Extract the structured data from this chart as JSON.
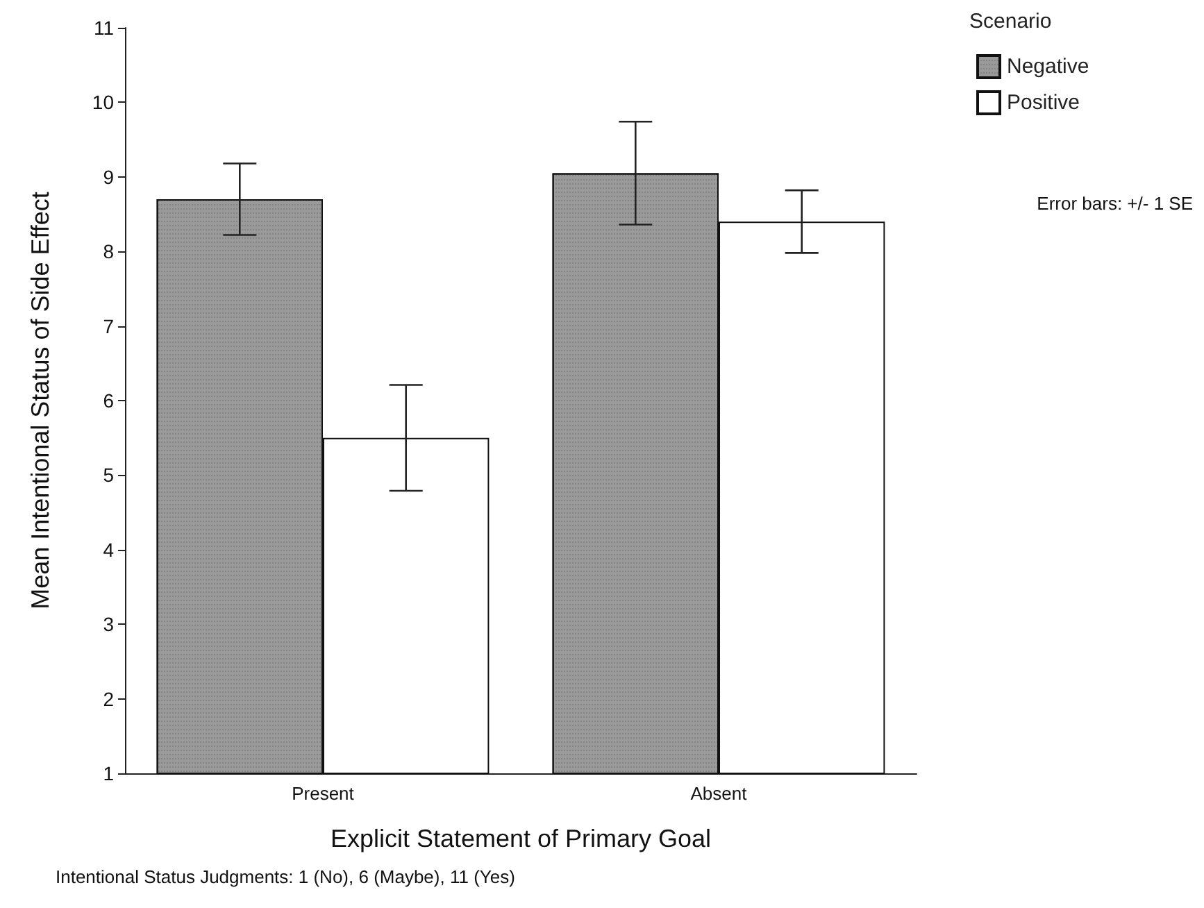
{
  "chart_data": {
    "type": "bar",
    "xlabel": "Explicit Statement of Primary Goal",
    "ylabel": "Mean Intentional Status of Side Effect",
    "legend_title": "Scenario",
    "categories": [
      "Present",
      "Absent"
    ],
    "series": [
      {
        "name": "Negative",
        "color": "#9a9a9a",
        "values": [
          8.7,
          9.05
        ],
        "errors": [
          0.48,
          0.69
        ]
      },
      {
        "name": "Positive",
        "color": "#ffffff",
        "values": [
          5.5,
          8.4
        ],
        "errors": [
          0.71,
          0.42
        ]
      }
    ],
    "ylim": [
      1,
      11
    ],
    "yticks": [
      1,
      2,
      3,
      4,
      5,
      6,
      7,
      8,
      9,
      10,
      11
    ],
    "grid": false,
    "legend": "top right",
    "annotations": [
      "Error bars: +/- 1 SE",
      "Intentional Status Judgments: 1 (No), 6 (Maybe), 11 (Yes)"
    ]
  }
}
